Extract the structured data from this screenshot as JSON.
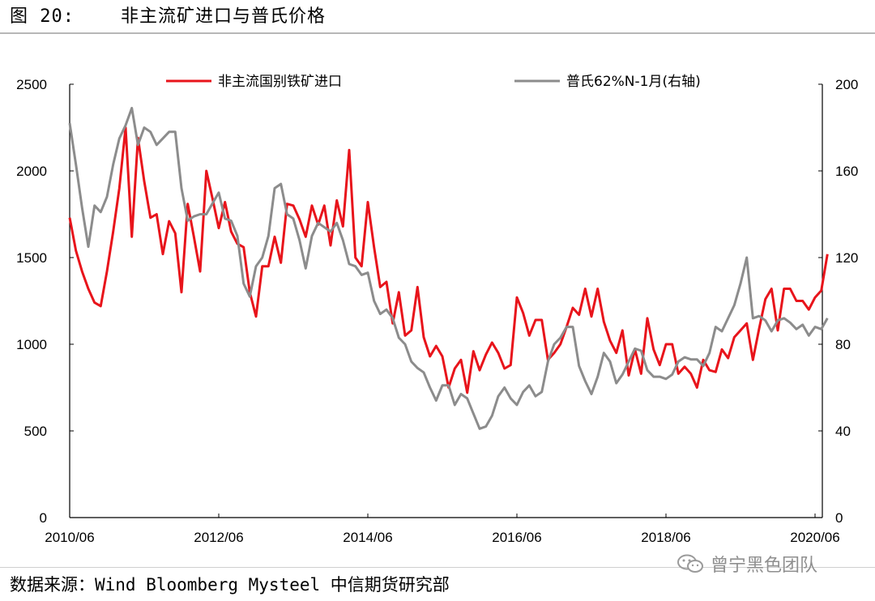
{
  "figure": {
    "title": "图 20:    非主流矿进口与普氏价格",
    "source": "数据来源：Wind Bloomberg Mysteel 中信期货研究部",
    "watermark": "曾宁黑色团队",
    "watermark_icon": "wechat-logo-icon"
  },
  "colors": {
    "series_red": "#e8141b",
    "series_gray": "#8c8c8c",
    "axis": "#000000"
  },
  "chart_data": {
    "type": "line",
    "title": "",
    "x_tick_labels": [
      "2010/06",
      "2012/06",
      "2014/06",
      "2016/06",
      "2018/06",
      "2020/06"
    ],
    "x_range": [
      "2010-06",
      "2020-06"
    ],
    "y_left": {
      "range": [
        0,
        2500
      ],
      "ticks": [
        "0",
        "500",
        "1000",
        "1500",
        "2000",
        "2500"
      ]
    },
    "y_right": {
      "range": [
        0,
        200
      ],
      "ticks": [
        "0",
        "40",
        "80",
        "120",
        "160",
        "200"
      ]
    },
    "grid": false,
    "legend_position": "top",
    "series": [
      {
        "name": "非主流国别铁矿进口",
        "axis": "left",
        "color": "#e8141b",
        "data": [
          [
            "2010-06",
            1730
          ],
          [
            "2010-07",
            1540
          ],
          [
            "2010-08",
            1420
          ],
          [
            "2010-09",
            1320
          ],
          [
            "2010-10",
            1240
          ],
          [
            "2010-11",
            1220
          ],
          [
            "2010-12",
            1420
          ],
          [
            "2011-01",
            1650
          ],
          [
            "2011-02",
            1900
          ],
          [
            "2011-03",
            2250
          ],
          [
            "2011-04",
            1620
          ],
          [
            "2011-05",
            2190
          ],
          [
            "2011-06",
            1940
          ],
          [
            "2011-07",
            1730
          ],
          [
            "2011-08",
            1750
          ],
          [
            "2011-09",
            1520
          ],
          [
            "2011-10",
            1710
          ],
          [
            "2011-11",
            1640
          ],
          [
            "2011-12",
            1300
          ],
          [
            "2012-01",
            1810
          ],
          [
            "2012-02",
            1620
          ],
          [
            "2012-03",
            1420
          ],
          [
            "2012-04",
            2000
          ],
          [
            "2012-05",
            1840
          ],
          [
            "2012-06",
            1670
          ],
          [
            "2012-07",
            1820
          ],
          [
            "2012-08",
            1650
          ],
          [
            "2012-09",
            1580
          ],
          [
            "2012-10",
            1560
          ],
          [
            "2012-11",
            1300
          ],
          [
            "2012-12",
            1160
          ],
          [
            "2013-01",
            1450
          ],
          [
            "2013-02",
            1450
          ],
          [
            "2013-03",
            1620
          ],
          [
            "2013-04",
            1470
          ],
          [
            "2013-05",
            1810
          ],
          [
            "2013-06",
            1800
          ],
          [
            "2013-07",
            1720
          ],
          [
            "2013-08",
            1620
          ],
          [
            "2013-09",
            1800
          ],
          [
            "2013-10",
            1690
          ],
          [
            "2013-11",
            1800
          ],
          [
            "2013-12",
            1570
          ],
          [
            "2014-01",
            1830
          ],
          [
            "2014-02",
            1680
          ],
          [
            "2014-03",
            2120
          ],
          [
            "2014-04",
            1500
          ],
          [
            "2014-05",
            1450
          ],
          [
            "2014-06",
            1820
          ],
          [
            "2014-07",
            1560
          ],
          [
            "2014-08",
            1330
          ],
          [
            "2014-09",
            1360
          ],
          [
            "2014-10",
            1120
          ],
          [
            "2014-11",
            1300
          ],
          [
            "2014-12",
            1050
          ],
          [
            "2015-01",
            1080
          ],
          [
            "2015-02",
            1330
          ],
          [
            "2015-03",
            1040
          ],
          [
            "2015-04",
            930
          ],
          [
            "2015-05",
            990
          ],
          [
            "2015-06",
            930
          ],
          [
            "2015-07",
            750
          ],
          [
            "2015-08",
            860
          ],
          [
            "2015-09",
            910
          ],
          [
            "2015-10",
            720
          ],
          [
            "2015-11",
            960
          ],
          [
            "2015-12",
            850
          ],
          [
            "2016-01",
            940
          ],
          [
            "2016-02",
            1010
          ],
          [
            "2016-03",
            950
          ],
          [
            "2016-04",
            860
          ],
          [
            "2016-05",
            880
          ],
          [
            "2016-06",
            1270
          ],
          [
            "2016-07",
            1180
          ],
          [
            "2016-08",
            1050
          ],
          [
            "2016-09",
            1140
          ],
          [
            "2016-10",
            1140
          ],
          [
            "2016-11",
            910
          ],
          [
            "2016-12",
            950
          ],
          [
            "2017-01",
            1000
          ],
          [
            "2017-02",
            1100
          ],
          [
            "2017-03",
            1210
          ],
          [
            "2017-04",
            1170
          ],
          [
            "2017-05",
            1320
          ],
          [
            "2017-06",
            1160
          ],
          [
            "2017-07",
            1320
          ],
          [
            "2017-08",
            1130
          ],
          [
            "2017-09",
            1020
          ],
          [
            "2017-10",
            950
          ],
          [
            "2017-11",
            1080
          ],
          [
            "2017-12",
            820
          ],
          [
            "2018-01",
            970
          ],
          [
            "2018-02",
            830
          ],
          [
            "2018-03",
            1150
          ],
          [
            "2018-04",
            970
          ],
          [
            "2018-05",
            880
          ],
          [
            "2018-06",
            1000
          ],
          [
            "2018-07",
            1000
          ],
          [
            "2018-08",
            830
          ],
          [
            "2018-09",
            870
          ],
          [
            "2018-10",
            830
          ],
          [
            "2018-11",
            750
          ],
          [
            "2018-12",
            910
          ],
          [
            "2019-01",
            850
          ],
          [
            "2019-02",
            840
          ],
          [
            "2019-03",
            970
          ],
          [
            "2019-04",
            920
          ],
          [
            "2019-05",
            1040
          ],
          [
            "2019-06",
            1080
          ],
          [
            "2019-07",
            1120
          ],
          [
            "2019-08",
            910
          ],
          [
            "2019-09",
            1090
          ],
          [
            "2019-10",
            1260
          ],
          [
            "2019-11",
            1320
          ],
          [
            "2019-12",
            1080
          ],
          [
            "2020-01",
            1320
          ],
          [
            "2020-02",
            1320
          ],
          [
            "2020-03",
            1250
          ],
          [
            "2020-04",
            1250
          ],
          [
            "2020-05",
            1200
          ],
          [
            "2020-06",
            1270
          ],
          [
            "2020-07",
            1310
          ],
          [
            "2020-08",
            1520
          ]
        ]
      },
      {
        "name": "普氏62%N-1月(右轴)",
        "axis": "right",
        "color": "#8c8c8c",
        "data": [
          [
            "2010-06",
            182
          ],
          [
            "2010-07",
            163
          ],
          [
            "2010-08",
            143
          ],
          [
            "2010-09",
            125
          ],
          [
            "2010-10",
            144
          ],
          [
            "2010-11",
            141
          ],
          [
            "2010-12",
            148
          ],
          [
            "2011-01",
            163
          ],
          [
            "2011-02",
            175
          ],
          [
            "2011-03",
            181
          ],
          [
            "2011-04",
            189
          ],
          [
            "2011-05",
            172
          ],
          [
            "2011-06",
            180
          ],
          [
            "2011-07",
            178
          ],
          [
            "2011-08",
            172
          ],
          [
            "2011-09",
            175
          ],
          [
            "2011-10",
            178
          ],
          [
            "2011-11",
            178
          ],
          [
            "2011-12",
            152
          ],
          [
            "2012-01",
            137
          ],
          [
            "2012-02",
            139
          ],
          [
            "2012-03",
            140
          ],
          [
            "2012-04",
            140
          ],
          [
            "2012-05",
            145
          ],
          [
            "2012-06",
            150
          ],
          [
            "2012-07",
            138
          ],
          [
            "2012-08",
            137
          ],
          [
            "2012-09",
            130
          ],
          [
            "2012-10",
            108
          ],
          [
            "2012-11",
            102
          ],
          [
            "2012-12",
            116
          ],
          [
            "2013-01",
            120
          ],
          [
            "2013-02",
            130
          ],
          [
            "2013-03",
            152
          ],
          [
            "2013-04",
            154
          ],
          [
            "2013-05",
            140
          ],
          [
            "2013-06",
            138
          ],
          [
            "2013-07",
            128
          ],
          [
            "2013-08",
            115
          ],
          [
            "2013-09",
            130
          ],
          [
            "2013-10",
            136
          ],
          [
            "2013-11",
            134
          ],
          [
            "2013-12",
            132
          ],
          [
            "2014-01",
            136
          ],
          [
            "2014-02",
            128
          ],
          [
            "2014-03",
            117
          ],
          [
            "2014-04",
            116
          ],
          [
            "2014-05",
            112
          ],
          [
            "2014-06",
            113
          ],
          [
            "2014-07",
            100
          ],
          [
            "2014-08",
            94
          ],
          [
            "2014-09",
            96
          ],
          [
            "2014-10",
            92
          ],
          [
            "2014-11",
            83
          ],
          [
            "2014-12",
            80
          ],
          [
            "2015-01",
            72
          ],
          [
            "2015-02",
            69
          ],
          [
            "2015-03",
            67
          ],
          [
            "2015-04",
            60
          ],
          [
            "2015-05",
            54
          ],
          [
            "2015-06",
            61
          ],
          [
            "2015-07",
            61
          ],
          [
            "2015-08",
            52
          ],
          [
            "2015-09",
            57
          ],
          [
            "2015-10",
            55
          ],
          [
            "2015-11",
            48
          ],
          [
            "2015-12",
            41
          ],
          [
            "2016-01",
            42
          ],
          [
            "2016-02",
            47
          ],
          [
            "2016-03",
            56
          ],
          [
            "2016-04",
            60
          ],
          [
            "2016-05",
            55
          ],
          [
            "2016-06",
            52
          ],
          [
            "2016-07",
            58
          ],
          [
            "2016-08",
            61
          ],
          [
            "2016-09",
            56
          ],
          [
            "2016-10",
            58
          ],
          [
            "2016-11",
            72
          ],
          [
            "2016-12",
            80
          ],
          [
            "2017-01",
            83
          ],
          [
            "2017-02",
            88
          ],
          [
            "2017-03",
            88
          ],
          [
            "2017-04",
            70
          ],
          [
            "2017-05",
            63
          ],
          [
            "2017-06",
            57
          ],
          [
            "2017-07",
            65
          ],
          [
            "2017-08",
            76
          ],
          [
            "2017-09",
            72
          ],
          [
            "2017-10",
            62
          ],
          [
            "2017-11",
            66
          ],
          [
            "2017-12",
            72
          ],
          [
            "2018-01",
            78
          ],
          [
            "2018-02",
            77
          ],
          [
            "2018-03",
            68
          ],
          [
            "2018-04",
            65
          ],
          [
            "2018-05",
            65
          ],
          [
            "2018-06",
            64
          ],
          [
            "2018-07",
            66
          ],
          [
            "2018-08",
            72
          ],
          [
            "2018-09",
            74
          ],
          [
            "2018-10",
            73
          ],
          [
            "2018-11",
            73
          ],
          [
            "2018-12",
            70
          ],
          [
            "2019-01",
            76
          ],
          [
            "2019-02",
            88
          ],
          [
            "2019-03",
            86
          ],
          [
            "2019-04",
            92
          ],
          [
            "2019-05",
            98
          ],
          [
            "2019-06",
            108
          ],
          [
            "2019-07",
            120
          ],
          [
            "2019-08",
            92
          ],
          [
            "2019-09",
            93
          ],
          [
            "2019-10",
            91
          ],
          [
            "2019-11",
            86
          ],
          [
            "2019-12",
            91
          ],
          [
            "2020-01",
            92
          ],
          [
            "2020-02",
            90
          ],
          [
            "2020-03",
            87
          ],
          [
            "2020-04",
            89
          ],
          [
            "2020-05",
            84
          ],
          [
            "2020-06",
            88
          ],
          [
            "2020-07",
            87
          ],
          [
            "2020-08",
            92
          ]
        ]
      }
    ]
  }
}
